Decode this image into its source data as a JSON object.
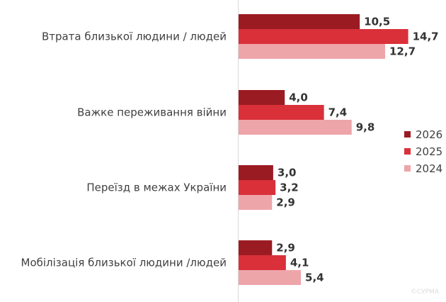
{
  "chart_data": {
    "type": "bar",
    "orientation": "horizontal",
    "categories": [
      "Втрата близької людини / людей",
      "Важке переживання війни",
      "Переїзд в межах України",
      "Мобілізація близької людини /людей"
    ],
    "series": [
      {
        "name": "2026",
        "color": "#9b1b22",
        "values": [
          10.5,
          4.0,
          3.0,
          2.9
        ],
        "labels": [
          "10,5",
          "4,0",
          "3,0",
          "2,9"
        ]
      },
      {
        "name": "2025",
        "color": "#d9303a",
        "values": [
          14.7,
          7.4,
          3.2,
          4.1
        ],
        "labels": [
          "14,7",
          "7,4",
          "3,2",
          "4,1"
        ]
      },
      {
        "name": "2024",
        "color": "#eea5aa",
        "values": [
          12.7,
          9.8,
          2.9,
          5.4
        ],
        "labels": [
          "12,7",
          "9,8",
          "2,9",
          "5,4"
        ]
      }
    ],
    "xlim": [
      0,
      18
    ],
    "grid": false,
    "legend_position": "right",
    "watermark": "©СУРМА"
  }
}
